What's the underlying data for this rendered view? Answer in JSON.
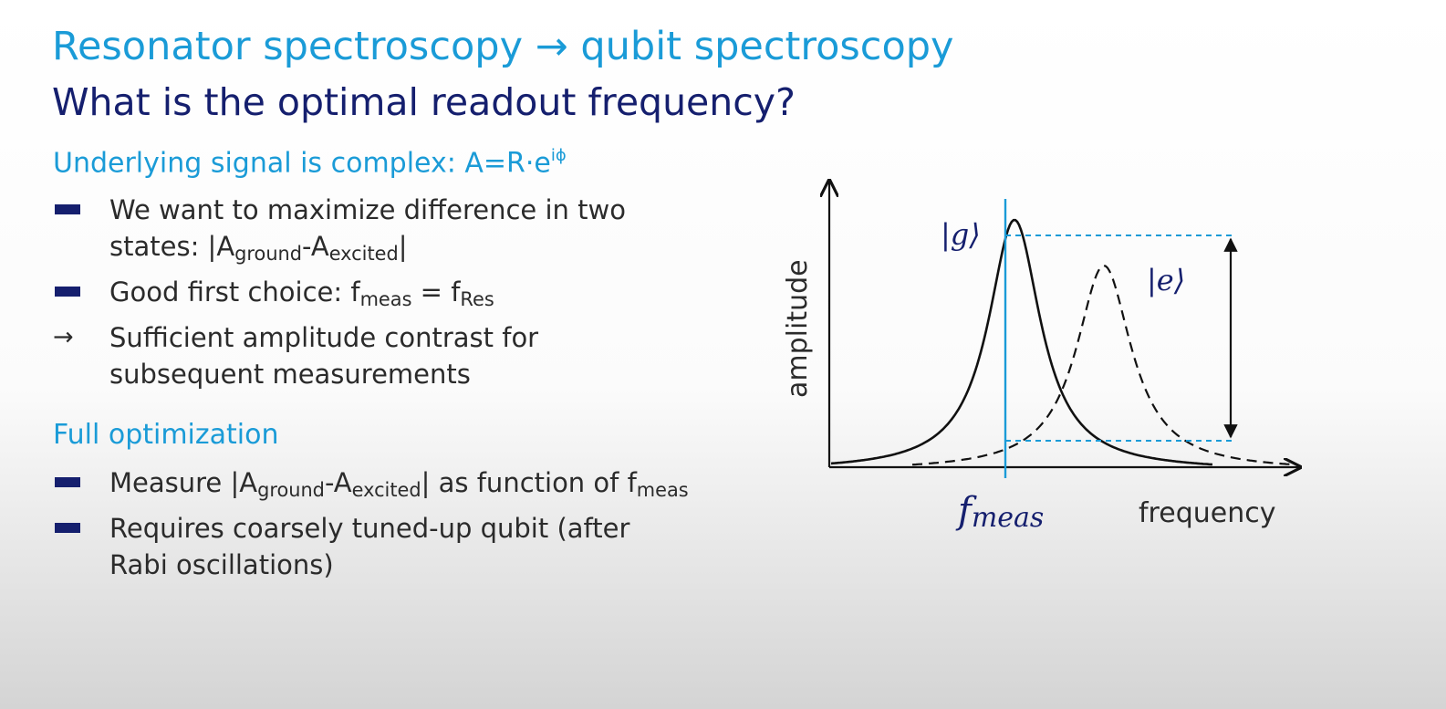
{
  "slide": {
    "title": "Resonator spectroscopy → qubit spectroscopy",
    "subtitle": "What is the optimal readout frequency?",
    "section1": {
      "heading": "Underlying signal is complex: A=R·e",
      "heading_sup": "iϕ",
      "bullets": [
        {
          "marker": "dash",
          "line1_pre": "We want to maximize difference in two",
          "line2_pre": "states: |A",
          "sub1": "ground",
          "mid": "-A",
          "sub2": "excited",
          "post": "|"
        },
        {
          "marker": "dash",
          "pre": "Good first choice: f",
          "sub1": "meas",
          "mid": " = f",
          "sub2": "Res"
        },
        {
          "marker": "arrow",
          "arrow_glyph": "→",
          "line1": "Sufficient amplitude contrast for",
          "line2": "subsequent measurements"
        }
      ]
    },
    "section2": {
      "heading": "Full optimization",
      "bullets": [
        {
          "marker": "dash",
          "pre": "Measure |A",
          "sub1": "ground",
          "mid": "-A",
          "sub2": "excited",
          "mid2": "| as function of f",
          "sub3": "meas"
        },
        {
          "marker": "dash",
          "line1": "Requires coarsely tuned-up qubit (after",
          "line2": "Rabi oscillations)"
        }
      ]
    }
  },
  "diagram": {
    "y_axis_label": "amplitude",
    "x_axis_label": "frequency",
    "f_label_main": "f",
    "f_label_sub": "meas",
    "ground_state_label": "|g⟩",
    "excited_state_label": "|e⟩",
    "colors": {
      "accent": "#1a9bd7",
      "curve": "#111111",
      "dark_navy": "#151f6e"
    }
  }
}
